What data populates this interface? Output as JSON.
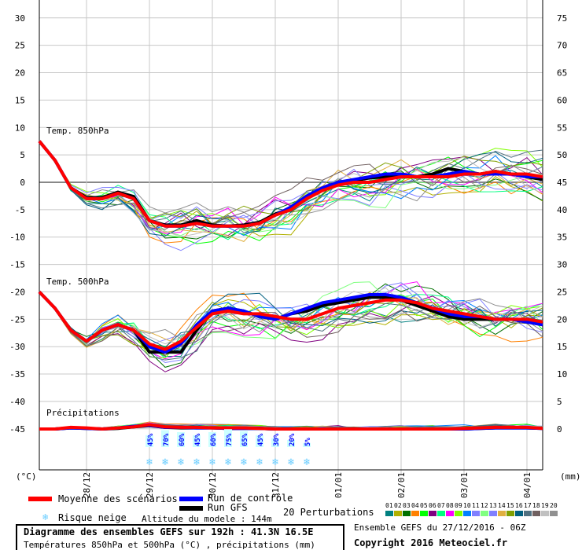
{
  "chart_data": {
    "type": "line",
    "title": "Diagramme des ensembles GEFS sur 192h : 41.3N 16.5E",
    "subtitle": "Températures 850hPa et 500hPa (°C) , précipitations (mm)",
    "run_info": "Ensemble GEFS du 27/12/2016 - 06Z",
    "copyright": "Copyright 2016 Meteociel.fr",
    "altitude": "Altitude du modele : 144m",
    "left_axis": {
      "label": "(°C)",
      "ylim": [
        -45,
        30
      ],
      "ticks": [
        30,
        25,
        20,
        15,
        10,
        5,
        0,
        -5,
        -10,
        -15,
        -20,
        -25,
        -30,
        -35,
        -40,
        -45
      ]
    },
    "right_axis": {
      "label": "(mm)",
      "ylim": [
        0,
        75
      ],
      "ticks": [
        75,
        70,
        65,
        60,
        55,
        50,
        45,
        40,
        35,
        30,
        25,
        20,
        15,
        10,
        5,
        0
      ]
    },
    "x_hours": [
      0,
      6,
      12,
      18,
      24,
      30,
      36,
      42,
      48,
      54,
      60,
      66,
      72,
      78,
      84,
      90,
      96,
      102,
      108,
      114,
      120,
      126,
      132,
      138,
      144,
      150,
      156,
      162,
      168,
      174,
      180,
      186,
      192
    ],
    "x_ticks": [
      {
        "label": "28/12",
        "hour": 18
      },
      {
        "label": "29/12",
        "hour": 42
      },
      {
        "label": "30/12",
        "hour": 66
      },
      {
        "label": "31/12",
        "hour": 90
      },
      {
        "label": "01/01",
        "hour": 114
      },
      {
        "label": "02/01",
        "hour": 138
      },
      {
        "label": "03/01",
        "hour": 162
      },
      {
        "label": "04/01",
        "hour": 186
      }
    ],
    "panels": {
      "t850": "Temp. 850hPa",
      "t500": "Temp. 500hPa",
      "precip": "Précipitations"
    },
    "series": {
      "t850_mean": [
        7.5,
        4,
        -1,
        -3,
        -3,
        -2,
        -3,
        -7,
        -8,
        -8,
        -7.5,
        -8,
        -8,
        -8,
        -7.5,
        -6,
        -5,
        -3,
        -1.5,
        -0.5,
        0,
        0,
        0.5,
        1,
        1,
        1,
        1,
        1.5,
        1.5,
        2,
        1.5,
        1.5,
        1
      ],
      "t850_control": [
        7.5,
        4,
        -1,
        -3,
        -3,
        -2,
        -3,
        -7,
        -8,
        -8,
        -7.5,
        -8,
        -8,
        -8,
        -7.5,
        -6,
        -4.5,
        -2.5,
        -1,
        0,
        0.5,
        1,
        1.5,
        1.5,
        1,
        1,
        1.5,
        2,
        1.5,
        1.5,
        1.5,
        1,
        1
      ],
      "t850_gfs": [
        7.5,
        4,
        -1,
        -2.8,
        -2.8,
        -1.8,
        -2.6,
        -7,
        -7.8,
        -7.8,
        -7,
        -7.8,
        -8,
        -7.8,
        -7.3,
        -5.8,
        -4.8,
        -3,
        -1.2,
        -0.3,
        0.3,
        0.8,
        1,
        1.5,
        1,
        1.5,
        2.5,
        2,
        1.5,
        2,
        1.5,
        1,
        0.5
      ],
      "t500_mean": [
        -20,
        -23,
        -27,
        -29,
        -27,
        -26,
        -27,
        -29.5,
        -30.5,
        -29,
        -26.5,
        -24,
        -23.5,
        -24,
        -24,
        -24.5,
        -25,
        -25,
        -24,
        -23,
        -22.5,
        -22,
        -21.5,
        -21.5,
        -22,
        -23,
        -23.5,
        -24,
        -24.5,
        -25,
        -25,
        -25,
        -25.5
      ],
      "t500_control": [
        -20,
        -23,
        -27,
        -29,
        -27,
        -26,
        -27,
        -30,
        -31,
        -29.5,
        -26,
        -23.5,
        -23,
        -23.5,
        -24.5,
        -25,
        -24,
        -23,
        -22,
        -21.5,
        -21,
        -20.5,
        -20.5,
        -21,
        -22,
        -23,
        -24,
        -24.5,
        -24.5,
        -25,
        -25,
        -25.5,
        -26
      ],
      "t500_gfs": [
        -20,
        -23,
        -27,
        -29,
        -27,
        -26,
        -27,
        -31,
        -31,
        -31,
        -27,
        -23.5,
        -23,
        -23.5,
        -24.5,
        -25,
        -24,
        -23.5,
        -22.5,
        -22,
        -21.5,
        -21,
        -21,
        -21.5,
        -22.5,
        -23.5,
        -24.5,
        -25,
        -25,
        -25,
        -25,
        -25.5,
        -26
      ],
      "precip_mean": [
        0,
        0,
        0.3,
        0.2,
        0,
        0.2,
        0.4,
        0.8,
        0.4,
        0.3,
        0.3,
        0.2,
        0.2,
        0.2,
        0.1,
        0,
        0,
        0,
        0,
        0,
        0,
        0,
        0,
        0,
        0,
        0,
        0,
        0.1,
        0.2,
        0.3,
        0.3,
        0.3,
        0.1
      ],
      "precip_control": [
        0,
        0,
        0.2,
        0.1,
        0,
        0.2,
        0.5,
        0.7,
        0.3,
        0.3,
        0.2,
        0.2,
        0.1,
        0.1,
        0.1,
        0,
        0,
        0,
        0,
        0,
        0,
        0,
        0,
        0,
        0,
        0,
        0,
        0,
        0.1,
        0.2,
        0.2,
        0.2,
        0.1
      ],
      "precip_gfs": [
        0,
        0,
        0.2,
        0.1,
        0,
        0.1,
        0.4,
        0.6,
        0.3,
        0.2,
        0.2,
        0.2,
        0.1,
        0.1,
        0.1,
        0,
        0,
        0,
        0,
        0,
        0,
        0,
        0,
        0,
        0,
        0,
        0,
        0,
        0.1,
        0.2,
        0.2,
        0.2,
        0.1
      ]
    },
    "snow_risk": [
      {
        "hour": 42,
        "label": "45%"
      },
      {
        "hour": 48,
        "label": "70%"
      },
      {
        "hour": 54,
        "label": "60%"
      },
      {
        "hour": 60,
        "label": "45%"
      },
      {
        "hour": 66,
        "label": "60%"
      },
      {
        "hour": 72,
        "label": "75%"
      },
      {
        "hour": 78,
        "label": "65%"
      },
      {
        "hour": 84,
        "label": "45%"
      },
      {
        "hour": 90,
        "label": "30%"
      },
      {
        "hour": 96,
        "label": "20%"
      },
      {
        "hour": 102,
        "label": "5%"
      }
    ],
    "legend": {
      "mean": "Moyenne des scénarios",
      "control": "Run de contrôle",
      "gfs": "Run GFS",
      "snow": "Risque neige",
      "perturbations": "20 Perturbations"
    },
    "perturbation_ids": [
      "01",
      "02",
      "03",
      "04",
      "05",
      "06",
      "07",
      "08",
      "09",
      "10",
      "11",
      "12",
      "13",
      "14",
      "15",
      "16",
      "17",
      "18",
      "19",
      "20"
    ],
    "perturbation_colors": [
      "#008080",
      "#b0b000",
      "#007000",
      "#ff8000",
      "#00ff00",
      "#800080",
      "#00ff80",
      "#ff00ff",
      "#80ff00",
      "#0080ff",
      "#8080ff",
      "#80ff80",
      "#8080ff",
      "#e0b040",
      "#80a000",
      "#006080",
      "#507080",
      "#706060",
      "#c0c0c0",
      "#909090"
    ],
    "colors": {
      "mean": "#ff0000",
      "control": "#0000ff",
      "gfs": "#000000"
    }
  }
}
